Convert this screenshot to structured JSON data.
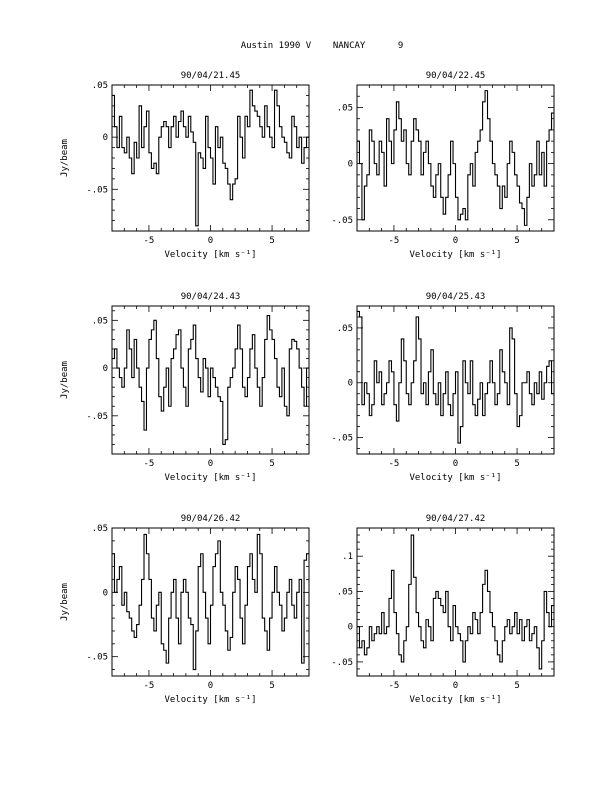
{
  "header": {
    "title": "Austin 1990 V    NANCAY      9"
  },
  "colors": {
    "ink": "#000000",
    "background": "#ffffff"
  },
  "chart_data": [
    {
      "type": "line",
      "title": "90/04/21.45",
      "xlabel": "Velocity [km s⁻¹]",
      "ylabel": "Jy/beam",
      "xlim": [
        -8,
        8
      ],
      "ylim": [
        -0.09,
        0.05
      ],
      "xticks": [
        -5,
        0,
        5
      ],
      "yticks": [
        0.05,
        0,
        -0.05
      ],
      "x": [
        -8.0,
        -7.8,
        -7.6,
        -7.4,
        -7.2,
        -7.0,
        -6.8,
        -6.6,
        -6.4,
        -6.2,
        -6.0,
        -5.8,
        -5.6,
        -5.4,
        -5.2,
        -5.0,
        -4.8,
        -4.6,
        -4.4,
        -4.2,
        -4.0,
        -3.8,
        -3.6,
        -3.4,
        -3.2,
        -3.0,
        -2.8,
        -2.6,
        -2.4,
        -2.2,
        -2.0,
        -1.8,
        -1.6,
        -1.4,
        -1.2,
        -1.0,
        -0.8,
        -0.6,
        -0.4,
        -0.2,
        0.0,
        0.2,
        0.4,
        0.6,
        0.8,
        1.0,
        1.2,
        1.4,
        1.6,
        1.8,
        2.0,
        2.2,
        2.4,
        2.6,
        2.8,
        3.0,
        3.2,
        3.4,
        3.6,
        3.8,
        4.0,
        4.2,
        4.4,
        4.6,
        4.8,
        5.0,
        5.2,
        5.4,
        5.6,
        5.8,
        6.0,
        6.2,
        6.4,
        6.6,
        6.8,
        7.0,
        7.2,
        7.4,
        7.6,
        7.8
      ],
      "values": [
        0.04,
        0.01,
        -0.01,
        0.02,
        -0.01,
        -0.015,
        0.0,
        -0.02,
        -0.035,
        -0.005,
        -0.02,
        0.03,
        -0.01,
        0.01,
        0.025,
        -0.015,
        -0.03,
        -0.025,
        -0.035,
        0.0,
        0.01,
        0.015,
        0.01,
        -0.01,
        0.01,
        0.02,
        0.0,
        0.015,
        0.025,
        0.01,
        0.0,
        0.02,
        0.005,
        -0.005,
        -0.085,
        -0.015,
        -0.02,
        -0.03,
        0.02,
        -0.01,
        -0.02,
        -0.045,
        0.01,
        -0.01,
        0.0,
        -0.025,
        -0.03,
        -0.045,
        -0.06,
        -0.045,
        -0.04,
        0.02,
        0.0,
        -0.02,
        0.02,
        0.01,
        0.045,
        0.03,
        0.025,
        0.02,
        0.01,
        0.0,
        0.03,
        0.01,
        0.0,
        -0.01,
        0.045,
        0.03,
        0.01,
        0.0,
        -0.005,
        -0.015,
        -0.02,
        0.02,
        0.01,
        -0.01,
        0.0,
        -0.025,
        -0.01,
        0.0
      ]
    },
    {
      "type": "line",
      "title": "90/04/22.45",
      "xlabel": "Velocity [km s⁻¹]",
      "ylabel": "",
      "xlim": [
        -8,
        8
      ],
      "ylim": [
        -0.06,
        0.07
      ],
      "xticks": [
        -5,
        0,
        5
      ],
      "yticks": [
        0.05,
        0,
        -0.05
      ],
      "x": [
        -8.0,
        -7.8,
        -7.6,
        -7.4,
        -7.2,
        -7.0,
        -6.8,
        -6.6,
        -6.4,
        -6.2,
        -6.0,
        -5.8,
        -5.6,
        -5.4,
        -5.2,
        -5.0,
        -4.8,
        -4.6,
        -4.4,
        -4.2,
        -4.0,
        -3.8,
        -3.6,
        -3.4,
        -3.2,
        -3.0,
        -2.8,
        -2.6,
        -2.4,
        -2.2,
        -2.0,
        -1.8,
        -1.6,
        -1.4,
        -1.2,
        -1.0,
        -0.8,
        -0.6,
        -0.4,
        -0.2,
        0.0,
        0.2,
        0.4,
        0.6,
        0.8,
        1.0,
        1.2,
        1.4,
        1.6,
        1.8,
        2.0,
        2.2,
        2.4,
        2.6,
        2.8,
        3.0,
        3.2,
        3.4,
        3.6,
        3.8,
        4.0,
        4.2,
        4.4,
        4.6,
        4.8,
        5.0,
        5.2,
        5.4,
        5.6,
        5.8,
        6.0,
        6.2,
        6.4,
        6.6,
        6.8,
        7.0,
        7.2,
        7.4,
        7.6,
        7.8
      ],
      "values": [
        0.02,
        0.0,
        -0.05,
        -0.02,
        -0.01,
        0.03,
        0.02,
        0.0,
        -0.01,
        0.02,
        0.01,
        -0.02,
        0.04,
        0.02,
        0.0,
        0.03,
        0.055,
        0.04,
        0.02,
        0.03,
        0.0,
        -0.01,
        0.02,
        0.04,
        0.03,
        0.02,
        -0.01,
        0.01,
        0.02,
        0.0,
        -0.02,
        -0.03,
        -0.01,
        0.0,
        -0.03,
        -0.045,
        -0.03,
        -0.01,
        0.02,
        0.0,
        -0.03,
        -0.05,
        -0.045,
        -0.04,
        -0.05,
        -0.01,
        0.0,
        -0.02,
        0.01,
        0.02,
        0.03,
        0.055,
        0.065,
        0.04,
        0.02,
        0.0,
        -0.01,
        -0.02,
        -0.04,
        -0.02,
        -0.03,
        0.0,
        0.02,
        0.01,
        -0.01,
        -0.02,
        -0.035,
        -0.04,
        -0.055,
        -0.03,
        0.0,
        -0.02,
        -0.01,
        0.02,
        -0.01,
        0.01,
        -0.02,
        0.02,
        0.03,
        0.045
      ]
    },
    {
      "type": "line",
      "title": "90/04/24.43",
      "xlabel": "Velocity [km s⁻¹]",
      "ylabel": "Jy/beam",
      "xlim": [
        -8,
        8
      ],
      "ylim": [
        -0.09,
        0.065
      ],
      "xticks": [
        -5,
        0,
        5
      ],
      "yticks": [
        0.05,
        0,
        -0.05
      ],
      "x": [
        -8.0,
        -7.8,
        -7.6,
        -7.4,
        -7.2,
        -7.0,
        -6.8,
        -6.6,
        -6.4,
        -6.2,
        -6.0,
        -5.8,
        -5.6,
        -5.4,
        -5.2,
        -5.0,
        -4.8,
        -4.6,
        -4.4,
        -4.2,
        -4.0,
        -3.8,
        -3.6,
        -3.4,
        -3.2,
        -3.0,
        -2.8,
        -2.6,
        -2.4,
        -2.2,
        -2.0,
        -1.8,
        -1.6,
        -1.4,
        -1.2,
        -1.0,
        -0.8,
        -0.6,
        -0.4,
        -0.2,
        0.0,
        0.2,
        0.4,
        0.6,
        0.8,
        1.0,
        1.2,
        1.4,
        1.6,
        1.8,
        2.0,
        2.2,
        2.4,
        2.6,
        2.8,
        3.0,
        3.2,
        3.4,
        3.6,
        3.8,
        4.0,
        4.2,
        4.4,
        4.6,
        4.8,
        5.0,
        5.2,
        5.4,
        5.6,
        5.8,
        6.0,
        6.2,
        6.4,
        6.6,
        6.8,
        7.0,
        7.2,
        7.4,
        7.6,
        7.8
      ],
      "values": [
        0.01,
        0.02,
        0.0,
        -0.01,
        -0.02,
        0.0,
        0.04,
        0.02,
        -0.01,
        0.03,
        0.0,
        -0.02,
        -0.035,
        -0.065,
        0.0,
        0.03,
        0.04,
        0.05,
        0.01,
        -0.03,
        -0.045,
        -0.02,
        0.0,
        -0.04,
        0.01,
        0.02,
        0.035,
        0.04,
        0.0,
        -0.02,
        -0.04,
        0.02,
        0.03,
        0.045,
        0.01,
        -0.01,
        -0.025,
        0.01,
        0.0,
        -0.03,
        0.0,
        -0.01,
        -0.02,
        -0.03,
        -0.035,
        -0.08,
        -0.075,
        -0.02,
        -0.01,
        0.0,
        0.02,
        0.045,
        0.02,
        -0.02,
        -0.03,
        -0.01,
        0.02,
        0.035,
        0.0,
        -0.02,
        -0.04,
        -0.01,
        0.03,
        0.055,
        0.04,
        0.03,
        0.01,
        -0.02,
        -0.03,
        0.0,
        -0.04,
        -0.05,
        0.02,
        0.03,
        0.028,
        0.02,
        0.0,
        -0.02,
        -0.04,
        0.0
      ]
    },
    {
      "type": "line",
      "title": "90/04/25.43",
      "xlabel": "Velocity [km s⁻¹]",
      "ylabel": "",
      "xlim": [
        -8,
        8
      ],
      "ylim": [
        -0.065,
        0.07
      ],
      "xticks": [
        -5,
        0,
        5
      ],
      "yticks": [
        0.05,
        0,
        -0.05
      ],
      "x": [
        -8.0,
        -7.8,
        -7.6,
        -7.4,
        -7.2,
        -7.0,
        -6.8,
        -6.6,
        -6.4,
        -6.2,
        -6.0,
        -5.8,
        -5.6,
        -5.4,
        -5.2,
        -5.0,
        -4.8,
        -4.6,
        -4.4,
        -4.2,
        -4.0,
        -3.8,
        -3.6,
        -3.4,
        -3.2,
        -3.0,
        -2.8,
        -2.6,
        -2.4,
        -2.2,
        -2.0,
        -1.8,
        -1.6,
        -1.4,
        -1.2,
        -1.0,
        -0.8,
        -0.6,
        -0.4,
        -0.2,
        0.0,
        0.2,
        0.4,
        0.6,
        0.8,
        1.0,
        1.2,
        1.4,
        1.6,
        1.8,
        2.0,
        2.2,
        2.4,
        2.6,
        2.8,
        3.0,
        3.2,
        3.4,
        3.6,
        3.8,
        4.0,
        4.2,
        4.4,
        4.6,
        4.8,
        5.0,
        5.2,
        5.4,
        5.6,
        5.8,
        6.0,
        6.2,
        6.4,
        6.6,
        6.8,
        7.0,
        7.2,
        7.4,
        7.6,
        7.8
      ],
      "values": [
        0.065,
        0.06,
        -0.02,
        0.0,
        -0.01,
        -0.03,
        -0.02,
        0.02,
        0.0,
        0.01,
        -0.02,
        -0.01,
        0.0,
        0.02,
        0.01,
        -0.02,
        -0.035,
        0.0,
        0.04,
        0.02,
        -0.01,
        -0.02,
        0.0,
        0.02,
        0.06,
        0.04,
        -0.01,
        0.0,
        -0.02,
        0.01,
        0.03,
        -0.01,
        -0.02,
        0.0,
        -0.03,
        -0.01,
        0.01,
        -0.02,
        -0.03,
        -0.01,
        0.01,
        -0.055,
        -0.04,
        0.02,
        0.0,
        -0.01,
        0.02,
        -0.02,
        -0.03,
        -0.015,
        0.0,
        -0.03,
        -0.01,
        0.0,
        0.02,
        0.0,
        -0.02,
        -0.01,
        0.03,
        0.01,
        0.0,
        -0.02,
        0.05,
        0.04,
        -0.01,
        -0.04,
        -0.03,
        0.0,
        0.0,
        0.01,
        -0.01,
        -0.02,
        0.0,
        -0.01,
        0.01,
        -0.015,
        0.0,
        0.015,
        0.02,
        -0.01
      ]
    },
    {
      "type": "line",
      "title": "90/04/26.42",
      "xlabel": "Velocity [km s⁻¹]",
      "ylabel": "Jy/beam",
      "xlim": [
        -8,
        8
      ],
      "ylim": [
        -0.065,
        0.05
      ],
      "xticks": [
        -5,
        0,
        5
      ],
      "yticks": [
        0.05,
        0,
        -0.05
      ],
      "x": [
        -8.0,
        -7.8,
        -7.6,
        -7.4,
        -7.2,
        -7.0,
        -6.8,
        -6.6,
        -6.4,
        -6.2,
        -6.0,
        -5.8,
        -5.6,
        -5.4,
        -5.2,
        -5.0,
        -4.8,
        -4.6,
        -4.4,
        -4.2,
        -4.0,
        -3.8,
        -3.6,
        -3.4,
        -3.2,
        -3.0,
        -2.8,
        -2.6,
        -2.4,
        -2.2,
        -2.0,
        -1.8,
        -1.6,
        -1.4,
        -1.2,
        -1.0,
        -0.8,
        -0.6,
        -0.4,
        -0.2,
        0.0,
        0.2,
        0.4,
        0.6,
        0.8,
        1.0,
        1.2,
        1.4,
        1.6,
        1.8,
        2.0,
        2.2,
        2.4,
        2.6,
        2.8,
        3.0,
        3.2,
        3.4,
        3.6,
        3.8,
        4.0,
        4.2,
        4.4,
        4.6,
        4.8,
        5.0,
        5.2,
        5.4,
        5.6,
        5.8,
        6.0,
        6.2,
        6.4,
        6.6,
        6.8,
        7.0,
        7.2,
        7.4,
        7.6,
        7.8
      ],
      "values": [
        0.03,
        0.0,
        0.01,
        0.02,
        -0.01,
        0.0,
        -0.015,
        -0.02,
        -0.03,
        -0.035,
        -0.025,
        -0.01,
        0.01,
        0.045,
        0.03,
        0.01,
        -0.02,
        -0.03,
        -0.01,
        0.0,
        -0.04,
        -0.045,
        -0.055,
        -0.02,
        0.0,
        0.01,
        -0.02,
        -0.04,
        0.0,
        0.01,
        0.0,
        -0.02,
        -0.025,
        -0.06,
        -0.03,
        0.02,
        0.03,
        0.0,
        -0.02,
        -0.04,
        -0.01,
        0.02,
        0.03,
        0.04,
        0.0,
        -0.01,
        -0.03,
        -0.045,
        -0.035,
        0.0,
        0.02,
        0.01,
        -0.02,
        -0.04,
        -0.01,
        0.02,
        0.03,
        0.01,
        0.0,
        0.045,
        0.03,
        -0.02,
        -0.03,
        -0.045,
        -0.02,
        0.0,
        0.02,
        0.0,
        -0.01,
        -0.03,
        -0.02,
        0.0,
        0.01,
        -0.01,
        -0.02,
        0.0,
        0.01,
        -0.055,
        0.025,
        0.03
      ]
    },
    {
      "type": "line",
      "title": "90/04/27.42",
      "xlabel": "Velocity [km s⁻¹]",
      "ylabel": "",
      "xlim": [
        -8,
        8
      ],
      "ylim": [
        -0.07,
        0.14
      ],
      "xticks": [
        -5,
        0,
        5
      ],
      "yticks": [
        0.1,
        0.05,
        0,
        -0.05
      ],
      "x": [
        -8.0,
        -7.8,
        -7.6,
        -7.4,
        -7.2,
        -7.0,
        -6.8,
        -6.6,
        -6.4,
        -6.2,
        -6.0,
        -5.8,
        -5.6,
        -5.4,
        -5.2,
        -5.0,
        -4.8,
        -4.6,
        -4.4,
        -4.2,
        -4.0,
        -3.8,
        -3.6,
        -3.4,
        -3.2,
        -3.0,
        -2.8,
        -2.6,
        -2.4,
        -2.2,
        -2.0,
        -1.8,
        -1.6,
        -1.4,
        -1.2,
        -1.0,
        -0.8,
        -0.6,
        -0.4,
        -0.2,
        0.0,
        0.2,
        0.4,
        0.6,
        0.8,
        1.0,
        1.2,
        1.4,
        1.6,
        1.8,
        2.0,
        2.2,
        2.4,
        2.6,
        2.8,
        3.0,
        3.2,
        3.4,
        3.6,
        3.8,
        4.0,
        4.2,
        4.4,
        4.6,
        4.8,
        5.0,
        5.2,
        5.4,
        5.6,
        5.8,
        6.0,
        6.2,
        6.4,
        6.6,
        6.8,
        7.0,
        7.2,
        7.4,
        7.6,
        7.8
      ],
      "values": [
        0.0,
        -0.03,
        -0.02,
        -0.04,
        -0.03,
        0.0,
        -0.02,
        -0.01,
        0.0,
        -0.01,
        0.02,
        -0.01,
        0.0,
        0.04,
        0.08,
        0.02,
        -0.01,
        -0.04,
        -0.05,
        -0.02,
        0.0,
        0.06,
        0.13,
        0.07,
        0.02,
        0.0,
        -0.02,
        -0.03,
        0.01,
        0.0,
        -0.02,
        0.04,
        0.05,
        0.04,
        0.03,
        0.02,
        0.05,
        0.0,
        -0.02,
        0.03,
        0.0,
        -0.01,
        -0.02,
        -0.05,
        -0.02,
        0.0,
        -0.01,
        0.02,
        0.01,
        -0.01,
        0.02,
        0.06,
        0.08,
        0.05,
        0.02,
        0.0,
        -0.02,
        -0.04,
        -0.05,
        -0.02,
        0.0,
        0.01,
        -0.01,
        0.0,
        0.02,
        -0.01,
        0.01,
        -0.02,
        0.0,
        0.01,
        -0.02,
        -0.01,
        0.0,
        -0.03,
        -0.06,
        -0.02,
        0.05,
        0.02,
        0.0,
        0.03
      ]
    }
  ]
}
